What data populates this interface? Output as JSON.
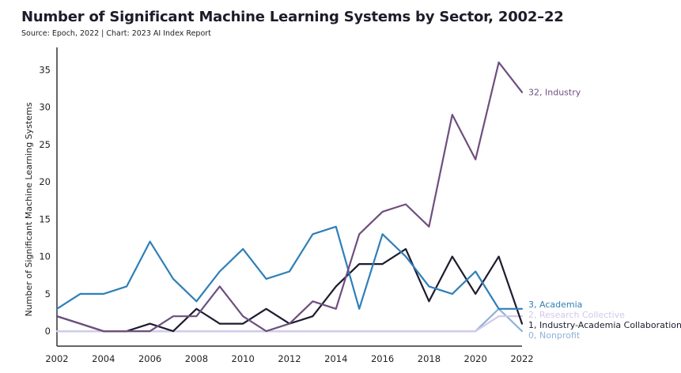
{
  "chart_data": {
    "type": "line",
    "title": "Number of Significant Machine Learning Systems by Sector, 2002–22",
    "subtitle": "Source: Epoch, 2022 | Chart: 2023 AI Index Report",
    "xlabel": "",
    "ylabel": "Number of Significant Machine Learning Systems",
    "x": [
      2002,
      2003,
      2004,
      2005,
      2006,
      2007,
      2008,
      2009,
      2010,
      2011,
      2012,
      2013,
      2014,
      2015,
      2016,
      2017,
      2018,
      2019,
      2020,
      2021,
      2022
    ],
    "x_ticks": [
      "2002",
      "2004",
      "2006",
      "2008",
      "2010",
      "2012",
      "2014",
      "2016",
      "2018",
      "2020",
      "2022"
    ],
    "y_ticks": [
      "0",
      "5",
      "10",
      "15",
      "20",
      "25",
      "30",
      "35"
    ],
    "xlim": [
      2002,
      2022
    ],
    "ylim": [
      -2,
      38
    ],
    "grid": false,
    "legend": "direct end labels",
    "series": [
      {
        "name": "Nonprofit",
        "color": "#8fb2d8",
        "end_label": "0, Nonprofit",
        "values": [
          0,
          0,
          0,
          0,
          0,
          0,
          0,
          0,
          0,
          0,
          0,
          0,
          0,
          0,
          0,
          0,
          0,
          0,
          0,
          3,
          0
        ]
      },
      {
        "name": "Research Collective",
        "color": "#d3c8ea",
        "end_label": "2, Research Collective",
        "values": [
          0,
          0,
          0,
          0,
          0,
          0,
          0,
          0,
          0,
          0,
          0,
          0,
          0,
          0,
          0,
          0,
          0,
          0,
          0,
          2,
          2
        ]
      },
      {
        "name": "Industry-Academia Collaboration",
        "color": "#1c1c30",
        "end_label": "1, Industry-Academia Collaboration",
        "values": [
          2,
          1,
          0,
          0,
          1,
          0,
          3,
          1,
          1,
          3,
          1,
          2,
          6,
          9,
          9,
          11,
          4,
          10,
          5,
          10,
          1
        ]
      },
      {
        "name": "Academia",
        "color": "#2e7fb8",
        "end_label": "3, Academia",
        "values": [
          3,
          5,
          5,
          6,
          12,
          7,
          4,
          8,
          11,
          7,
          8,
          13,
          14,
          3,
          13,
          10,
          6,
          5,
          8,
          3,
          3
        ]
      },
      {
        "name": "Industry",
        "color": "#6e4f7e",
        "end_label": "32, Industry",
        "values": [
          2,
          1,
          0,
          0,
          0,
          2,
          2,
          6,
          2,
          0,
          1,
          4,
          3,
          13,
          16,
          17,
          14,
          29,
          23,
          36,
          32
        ]
      }
    ]
  }
}
